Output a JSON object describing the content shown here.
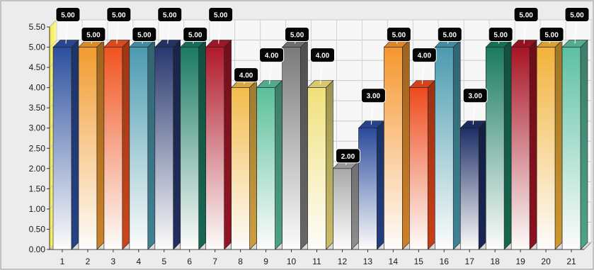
{
  "chart_data": {
    "type": "bar",
    "categories": [
      "1",
      "2",
      "3",
      "4",
      "5",
      "6",
      "7",
      "8",
      "9",
      "10",
      "11",
      "12",
      "13",
      "14",
      "15",
      "16",
      "17",
      "18",
      "19",
      "20",
      "21"
    ],
    "values": [
      5,
      5,
      5,
      5,
      5,
      5,
      5,
      4,
      4,
      5,
      4,
      2,
      3,
      5,
      4,
      5,
      3,
      5,
      5,
      5,
      5
    ],
    "data_labels": [
      "5.00",
      "5.00",
      "5.00",
      "5.00",
      "5.00",
      "5.00",
      "5.00",
      "4.00",
      "4.00",
      "5.00",
      "4.00",
      "2.00",
      "3.00",
      "5.00",
      "4.00",
      "5.00",
      "3.00",
      "5.00",
      "5.00",
      "5.00",
      "5.00"
    ],
    "y_ticks": [
      "0.00",
      "0.50",
      "1.00",
      "1.50",
      "2.00",
      "2.50",
      "3.00",
      "3.50",
      "4.00",
      "4.50",
      "5.00",
      "5.50"
    ],
    "ylim": [
      0,
      5.5
    ],
    "grid": true,
    "style": "3d-bar",
    "bar_colors": [
      "#2c4f9e",
      "#f29a2e",
      "#f0531f",
      "#4a9ab0",
      "#28376e",
      "#1a7a62",
      "#b0192a",
      "#f2bb4a",
      "#5bbf9a",
      "#7a7a7a",
      "#f0e07a",
      "#a8a8a8",
      "#2a4a9a",
      "#f5962e",
      "#ee4a1c",
      "#4a9ab0",
      "#1e2e66",
      "#1a7a5e",
      "#a81424",
      "#f2b23a",
      "#5cc0a2"
    ]
  }
}
